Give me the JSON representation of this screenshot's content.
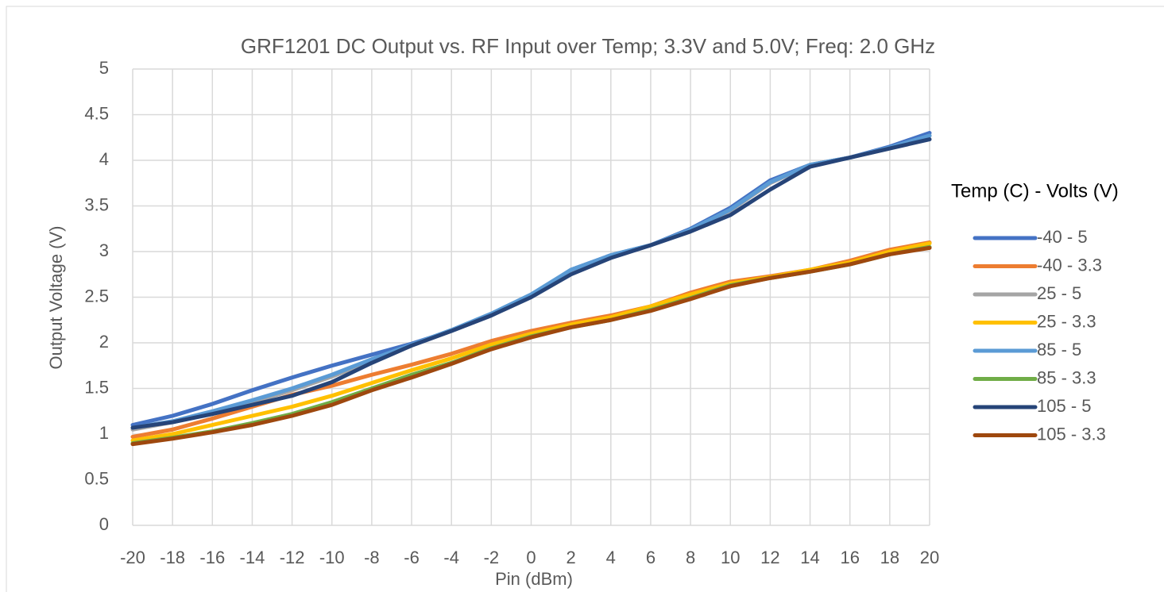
{
  "chart_data": {
    "type": "line",
    "title": "GRF1201 DC  Output vs. RF Input over Temp; 3.3V and 5.0V; Freq: 2.0 GHz",
    "xlabel": "Pin (dBm)",
    "ylabel": "Output Voltage (V)",
    "legend_title": "Temp (C) - Volts (V)",
    "legend": "right",
    "grid": true,
    "x": [
      -20,
      -18,
      -16,
      -14,
      -12,
      -10,
      -8,
      -6,
      -4,
      -2,
      0,
      2,
      4,
      6,
      8,
      10,
      12,
      14,
      16,
      18,
      20
    ],
    "xlim": [
      -20,
      20
    ],
    "xticks": [
      -20,
      -18,
      -16,
      -14,
      -12,
      -10,
      -8,
      -6,
      -4,
      -2,
      0,
      2,
      4,
      6,
      8,
      10,
      12,
      14,
      16,
      18,
      20
    ],
    "ylim": [
      0,
      5
    ],
    "yticks": [
      0,
      0.5,
      1,
      1.5,
      2,
      2.5,
      3,
      3.5,
      4,
      4.5,
      5
    ],
    "series": [
      {
        "name": "-40 - 5",
        "color": "#4472c4",
        "values": [
          1.1,
          1.2,
          1.33,
          1.48,
          1.62,
          1.75,
          1.87,
          1.99,
          2.13,
          2.3,
          2.52,
          2.8,
          2.96,
          3.07,
          3.25,
          3.48,
          3.78,
          3.95,
          4.03,
          4.15,
          4.3
        ]
      },
      {
        "name": "-40 - 3.3",
        "color": "#ed7d31",
        "values": [
          0.97,
          1.05,
          1.17,
          1.3,
          1.43,
          1.53,
          1.65,
          1.76,
          1.88,
          2.02,
          2.13,
          2.22,
          2.3,
          2.4,
          2.55,
          2.67,
          2.73,
          2.8,
          2.9,
          3.02,
          3.1
        ]
      },
      {
        "name": "25 - 5",
        "color": "#a5a5a5",
        "values": [
          1.05,
          1.13,
          1.23,
          1.35,
          1.48,
          1.63,
          1.8,
          1.97,
          2.13,
          2.3,
          2.52,
          2.78,
          2.95,
          3.07,
          3.23,
          3.45,
          3.75,
          3.95,
          4.03,
          4.13,
          4.27
        ]
      },
      {
        "name": "25 - 3.3",
        "color": "#ffc000",
        "values": [
          0.93,
          1.0,
          1.1,
          1.2,
          1.3,
          1.42,
          1.56,
          1.7,
          1.83,
          1.98,
          2.1,
          2.2,
          2.28,
          2.4,
          2.53,
          2.65,
          2.72,
          2.8,
          2.88,
          3.0,
          3.09
        ]
      },
      {
        "name": "85 - 5",
        "color": "#5b9bd5",
        "values": [
          1.07,
          1.14,
          1.25,
          1.37,
          1.5,
          1.65,
          1.82,
          1.98,
          2.14,
          2.32,
          2.53,
          2.8,
          2.96,
          3.07,
          3.24,
          3.46,
          3.76,
          3.95,
          4.03,
          4.14,
          4.27
        ]
      },
      {
        "name": "85 - 3.3",
        "color": "#70ad47",
        "values": [
          0.9,
          0.96,
          1.03,
          1.12,
          1.22,
          1.35,
          1.5,
          1.65,
          1.78,
          1.94,
          2.07,
          2.17,
          2.25,
          2.36,
          2.49,
          2.63,
          2.71,
          2.78,
          2.86,
          2.97,
          3.05
        ]
      },
      {
        "name": "105 - 5",
        "color": "#264478",
        "values": [
          1.07,
          1.13,
          1.22,
          1.32,
          1.42,
          1.57,
          1.78,
          1.97,
          2.13,
          2.3,
          2.5,
          2.75,
          2.93,
          3.07,
          3.22,
          3.4,
          3.68,
          3.93,
          4.03,
          4.13,
          4.23
        ]
      },
      {
        "name": "105 - 3.3",
        "color": "#9e480e",
        "values": [
          0.89,
          0.95,
          1.02,
          1.1,
          1.2,
          1.32,
          1.48,
          1.62,
          1.77,
          1.93,
          2.06,
          2.17,
          2.25,
          2.35,
          2.48,
          2.62,
          2.71,
          2.78,
          2.86,
          2.97,
          3.04
        ]
      }
    ]
  }
}
